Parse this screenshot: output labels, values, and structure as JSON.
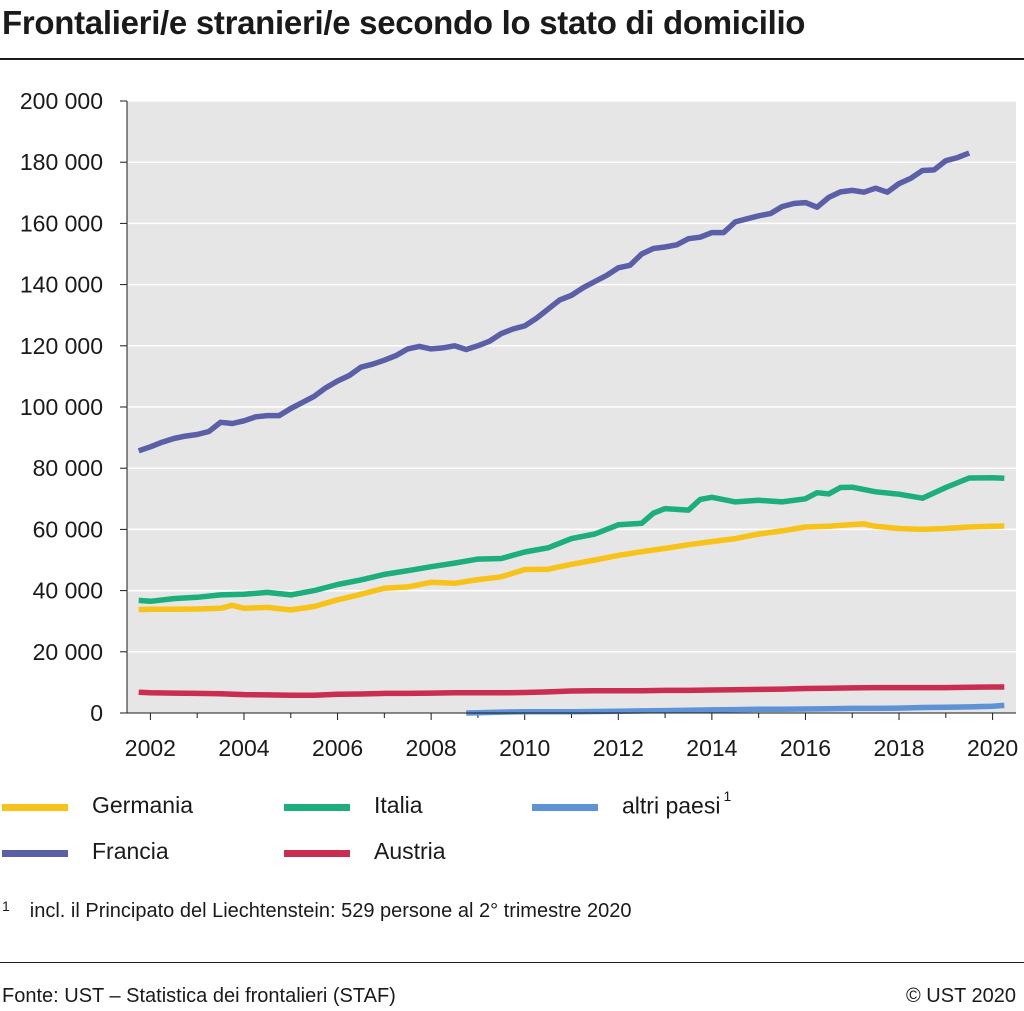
{
  "title": "Frontalieri/e stranieri/e secondo lo stato di domicilio",
  "footnote": {
    "marker": "1",
    "text": "incl. il Principato del Liechtenstein: 529 persone al 2° trimestre 2020"
  },
  "source": "Fonte: UST – Statistica dei frontalieri (STAF)",
  "copyright": "© UST 2020",
  "chart_data": {
    "type": "line",
    "title": "Frontalieri/e stranieri/e secondo lo stato di domicilio",
    "xlabel": "",
    "ylabel": "",
    "xlim": [
      2001.5,
      2020.5
    ],
    "ylim": [
      0,
      200000
    ],
    "x_ticks": [
      2002,
      2004,
      2006,
      2008,
      2010,
      2012,
      2014,
      2016,
      2018,
      2020
    ],
    "x_tick_labels": [
      "2002",
      "2004",
      "2006",
      "2008",
      "2010",
      "2012",
      "2014",
      "2016",
      "2018",
      "2020"
    ],
    "y_ticks": [
      0,
      20000,
      40000,
      60000,
      80000,
      100000,
      120000,
      140000,
      160000,
      180000,
      200000
    ],
    "y_tick_labels": [
      "0",
      "20 000",
      "40 000",
      "60 000",
      "80 000",
      "100 000",
      "120 000",
      "140 000",
      "160 000",
      "180 000",
      "200 000"
    ],
    "grid": true,
    "background": "#e6e6e6",
    "legend_position": "bottom",
    "series": [
      {
        "name": "Germania",
        "color": "#f7c319",
        "points": [
          [
            2001.75,
            33800
          ],
          [
            2002.0,
            33900
          ],
          [
            2002.5,
            33900
          ],
          [
            2003.0,
            34000
          ],
          [
            2003.5,
            34200
          ],
          [
            2003.75,
            35200
          ],
          [
            2004.0,
            34200
          ],
          [
            2004.5,
            34500
          ],
          [
            2005.0,
            33700
          ],
          [
            2005.5,
            34800
          ],
          [
            2006.0,
            37000
          ],
          [
            2006.5,
            38800
          ],
          [
            2007.0,
            40800
          ],
          [
            2007.5,
            41200
          ],
          [
            2008.0,
            42700
          ],
          [
            2008.5,
            42400
          ],
          [
            2009.0,
            43600
          ],
          [
            2009.5,
            44500
          ],
          [
            2010.0,
            46900
          ],
          [
            2010.5,
            47000
          ],
          [
            2011.0,
            48600
          ],
          [
            2011.5,
            50000
          ],
          [
            2012.0,
            51500
          ],
          [
            2012.5,
            52700
          ],
          [
            2013.0,
            53800
          ],
          [
            2013.5,
            55000
          ],
          [
            2014.0,
            56000
          ],
          [
            2014.5,
            57000
          ],
          [
            2015.0,
            58500
          ],
          [
            2015.5,
            59500
          ],
          [
            2016.0,
            60800
          ],
          [
            2016.5,
            61000
          ],
          [
            2017.0,
            61600
          ],
          [
            2017.25,
            61800
          ],
          [
            2017.5,
            61000
          ],
          [
            2018.0,
            60300
          ],
          [
            2018.5,
            60000
          ],
          [
            2019.0,
            60300
          ],
          [
            2019.5,
            60800
          ],
          [
            2020.0,
            61000
          ],
          [
            2020.25,
            61100
          ]
        ]
      },
      {
        "name": "Italia",
        "color": "#1cae7b",
        "points": [
          [
            2001.75,
            36800
          ],
          [
            2002.0,
            36500
          ],
          [
            2002.5,
            37400
          ],
          [
            2003.0,
            37800
          ],
          [
            2003.5,
            38600
          ],
          [
            2004.0,
            38800
          ],
          [
            2004.5,
            39400
          ],
          [
            2005.0,
            38600
          ],
          [
            2005.5,
            40000
          ],
          [
            2006.0,
            42000
          ],
          [
            2006.5,
            43500
          ],
          [
            2007.0,
            45300
          ],
          [
            2007.5,
            46500
          ],
          [
            2008.0,
            47800
          ],
          [
            2008.5,
            49000
          ],
          [
            2009.0,
            50300
          ],
          [
            2009.5,
            50500
          ],
          [
            2010.0,
            52600
          ],
          [
            2010.5,
            54000
          ],
          [
            2011.0,
            57000
          ],
          [
            2011.5,
            58500
          ],
          [
            2012.0,
            61500
          ],
          [
            2012.5,
            62000
          ],
          [
            2012.75,
            65300
          ],
          [
            2013.0,
            66800
          ],
          [
            2013.5,
            66300
          ],
          [
            2013.75,
            69800
          ],
          [
            2014.0,
            70500
          ],
          [
            2014.5,
            69000
          ],
          [
            2015.0,
            69500
          ],
          [
            2015.5,
            69000
          ],
          [
            2016.0,
            70000
          ],
          [
            2016.25,
            72000
          ],
          [
            2016.5,
            71600
          ],
          [
            2016.75,
            73700
          ],
          [
            2017.0,
            73800
          ],
          [
            2017.5,
            72300
          ],
          [
            2018.0,
            71500
          ],
          [
            2018.5,
            70200
          ],
          [
            2019.0,
            73700
          ],
          [
            2019.5,
            76800
          ],
          [
            2020.0,
            76900
          ],
          [
            2020.25,
            76700
          ]
        ]
      },
      {
        "name": "altri paesi",
        "color": "#5f93d7",
        "points": [
          [
            2008.75,
            0
          ],
          [
            2009.0,
            100
          ],
          [
            2009.5,
            300
          ],
          [
            2010.0,
            400
          ],
          [
            2010.5,
            400
          ],
          [
            2011.0,
            400
          ],
          [
            2011.5,
            500
          ],
          [
            2012.0,
            600
          ],
          [
            2012.5,
            700
          ],
          [
            2013.0,
            800
          ],
          [
            2013.5,
            900
          ],
          [
            2014.0,
            1000
          ],
          [
            2014.5,
            1100
          ],
          [
            2015.0,
            1200
          ],
          [
            2015.5,
            1200
          ],
          [
            2016.0,
            1300
          ],
          [
            2016.5,
            1400
          ],
          [
            2017.0,
            1500
          ],
          [
            2017.5,
            1500
          ],
          [
            2018.0,
            1600
          ],
          [
            2018.5,
            1800
          ],
          [
            2019.0,
            1900
          ],
          [
            2019.5,
            2000
          ],
          [
            2020.0,
            2200
          ],
          [
            2020.25,
            2500
          ]
        ]
      },
      {
        "name": "Francia",
        "color": "#5b5fa8",
        "points": [
          [
            2001.75,
            85700
          ],
          [
            2002.0,
            87000
          ],
          [
            2002.25,
            88500
          ],
          [
            2002.5,
            89700
          ],
          [
            2002.75,
            90500
          ],
          [
            2003.0,
            91000
          ],
          [
            2003.25,
            92000
          ],
          [
            2003.5,
            95000
          ],
          [
            2003.75,
            94600
          ],
          [
            2004.0,
            95500
          ],
          [
            2004.25,
            96800
          ],
          [
            2004.5,
            97200
          ],
          [
            2004.75,
            97200
          ],
          [
            2005.0,
            99500
          ],
          [
            2005.25,
            101500
          ],
          [
            2005.5,
            103500
          ],
          [
            2005.75,
            106300
          ],
          [
            2006.0,
            108500
          ],
          [
            2006.25,
            110300
          ],
          [
            2006.5,
            113000
          ],
          [
            2006.75,
            114000
          ],
          [
            2007.0,
            115300
          ],
          [
            2007.25,
            116800
          ],
          [
            2007.5,
            119000
          ],
          [
            2007.75,
            119800
          ],
          [
            2008.0,
            119000
          ],
          [
            2008.25,
            119300
          ],
          [
            2008.5,
            120000
          ],
          [
            2008.75,
            118800
          ],
          [
            2009.0,
            120000
          ],
          [
            2009.25,
            121500
          ],
          [
            2009.5,
            124000
          ],
          [
            2009.75,
            125500
          ],
          [
            2010.0,
            126500
          ],
          [
            2010.25,
            129000
          ],
          [
            2010.5,
            132000
          ],
          [
            2010.75,
            135000
          ],
          [
            2011.0,
            136500
          ],
          [
            2011.25,
            139000
          ],
          [
            2011.5,
            141000
          ],
          [
            2011.75,
            143000
          ],
          [
            2012.0,
            145500
          ],
          [
            2012.25,
            146300
          ],
          [
            2012.5,
            150000
          ],
          [
            2012.75,
            151800
          ],
          [
            2013.0,
            152300
          ],
          [
            2013.25,
            153000
          ],
          [
            2013.5,
            155000
          ],
          [
            2013.75,
            155500
          ],
          [
            2014.0,
            157000
          ],
          [
            2014.25,
            157000
          ],
          [
            2014.5,
            160500
          ],
          [
            2014.75,
            161500
          ],
          [
            2015.0,
            162500
          ],
          [
            2015.25,
            163200
          ],
          [
            2015.5,
            165500
          ],
          [
            2015.75,
            166500
          ],
          [
            2016.0,
            166800
          ],
          [
            2016.25,
            165300
          ],
          [
            2016.5,
            168500
          ],
          [
            2016.75,
            170300
          ],
          [
            2017.0,
            170800
          ],
          [
            2017.25,
            170200
          ],
          [
            2017.5,
            171500
          ],
          [
            2017.75,
            170200
          ],
          [
            2018.0,
            173000
          ],
          [
            2018.25,
            174700
          ],
          [
            2018.5,
            177300
          ],
          [
            2018.75,
            177500
          ],
          [
            2019.0,
            180500
          ],
          [
            2019.25,
            181500
          ],
          [
            2019.5,
            183000
          ]
        ]
      },
      {
        "name": "Austria",
        "color": "#c92d4f",
        "points": [
          [
            2001.75,
            6800
          ],
          [
            2002.0,
            6600
          ],
          [
            2002.5,
            6500
          ],
          [
            2003.0,
            6400
          ],
          [
            2003.5,
            6300
          ],
          [
            2004.0,
            6000
          ],
          [
            2004.5,
            5900
          ],
          [
            2005.0,
            5800
          ],
          [
            2005.5,
            5800
          ],
          [
            2006.0,
            6100
          ],
          [
            2006.5,
            6200
          ],
          [
            2007.0,
            6400
          ],
          [
            2007.5,
            6400
          ],
          [
            2008.0,
            6500
          ],
          [
            2008.5,
            6600
          ],
          [
            2009.0,
            6600
          ],
          [
            2009.5,
            6600
          ],
          [
            2010.0,
            6700
          ],
          [
            2010.5,
            6900
          ],
          [
            2011.0,
            7200
          ],
          [
            2011.5,
            7300
          ],
          [
            2012.0,
            7300
          ],
          [
            2012.5,
            7300
          ],
          [
            2013.0,
            7400
          ],
          [
            2013.5,
            7400
          ],
          [
            2014.0,
            7500
          ],
          [
            2014.5,
            7600
          ],
          [
            2015.0,
            7700
          ],
          [
            2015.5,
            7800
          ],
          [
            2016.0,
            8000
          ],
          [
            2016.5,
            8100
          ],
          [
            2017.0,
            8200
          ],
          [
            2017.5,
            8300
          ],
          [
            2018.0,
            8300
          ],
          [
            2018.5,
            8300
          ],
          [
            2019.0,
            8300
          ],
          [
            2019.5,
            8400
          ],
          [
            2020.0,
            8500
          ],
          [
            2020.25,
            8500
          ]
        ]
      }
    ]
  },
  "legend": [
    {
      "label": "Germania",
      "color": "#f7c319",
      "sup": ""
    },
    {
      "label": "Italia",
      "color": "#1cae7b",
      "sup": ""
    },
    {
      "label": "altri paesi",
      "color": "#5f93d7",
      "sup": "1"
    },
    {
      "label": "Francia",
      "color": "#5b5fa8",
      "sup": ""
    },
    {
      "label": "Austria",
      "color": "#c92d4f",
      "sup": ""
    }
  ]
}
